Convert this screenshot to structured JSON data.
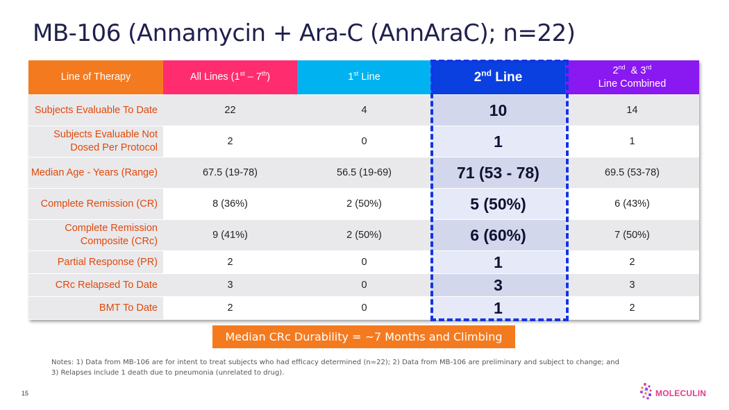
{
  "title": "MB-106 (Annamycin + Ara-C (AnnAraC); n=22)",
  "headers": {
    "c0": "Line of Therapy",
    "c1_pre": "All Lines (1",
    "c1_sup1": "st",
    "c1_mid": " – 7",
    "c1_sup2": "th",
    "c1_post": ")",
    "c2_pre": "1",
    "c2_sup": "st",
    "c2_post": " Line",
    "c3_pre": "2",
    "c3_sup": "nd",
    "c3_post": " Line",
    "c4_l1_a": "2",
    "c4_sup1": "nd",
    "c4_l1_b": "  & 3",
    "c4_sup2": "rd",
    "c4_l2": "Line Combined"
  },
  "rows": [
    {
      "label": "Subjects Evaluable To Date",
      "all": "22",
      "first": "4",
      "second": "10",
      "combined": "14"
    },
    {
      "label": "Subjects Evaluable Not Dosed Per Protocol",
      "all": "2",
      "first": "0",
      "second": "1",
      "combined": "1"
    },
    {
      "label": "Median Age - Years (Range)",
      "all": "67.5 (19-78)",
      "first": "56.5 (19-69)",
      "second": "71 (53 - 78)",
      "combined": "69.5 (53-78)"
    },
    {
      "label": "Complete Remission (CR)",
      "all": "8 (36%)",
      "first": "2 (50%)",
      "second": "5 (50%)",
      "combined": "6 (43%)"
    },
    {
      "label": "Complete Remission Composite (CRc)",
      "all": "9 (41%)",
      "first": "2 (50%)",
      "second": "6 (60%)",
      "combined": "7 (50%)"
    },
    {
      "label": "Partial Response (PR)",
      "all": "2",
      "first": "0",
      "second": "1",
      "combined": "2"
    },
    {
      "label": "CRc Relapsed To Date",
      "all": "3",
      "first": "0",
      "second": "3",
      "combined": "3"
    },
    {
      "label": "BMT To Date",
      "all": "2",
      "first": "0",
      "second": "1",
      "combined": "2"
    }
  ],
  "banner": "Median CRc Durability = ~7 Months and Climbing",
  "notes": "Notes: 1) Data from MB-106 are for intent to treat subjects who had efficacy determined (n=22); 2) Data from MB-106 are preliminary and subject to change; and 3) Relapses include 1 death due to pneumonia (unrelated to drug).",
  "page_number": "15",
  "logo": {
    "text": "MOLECULIN",
    "icon": "molecule-dots-icon"
  },
  "colors": {
    "col0": "#f47a20",
    "col1": "#ff2d6f",
    "col2": "#00b3f0",
    "col3": "#0a3fe0",
    "col4": "#8a18f0",
    "highlight_dash": "#1234e6",
    "banner": "#f47a20"
  }
}
